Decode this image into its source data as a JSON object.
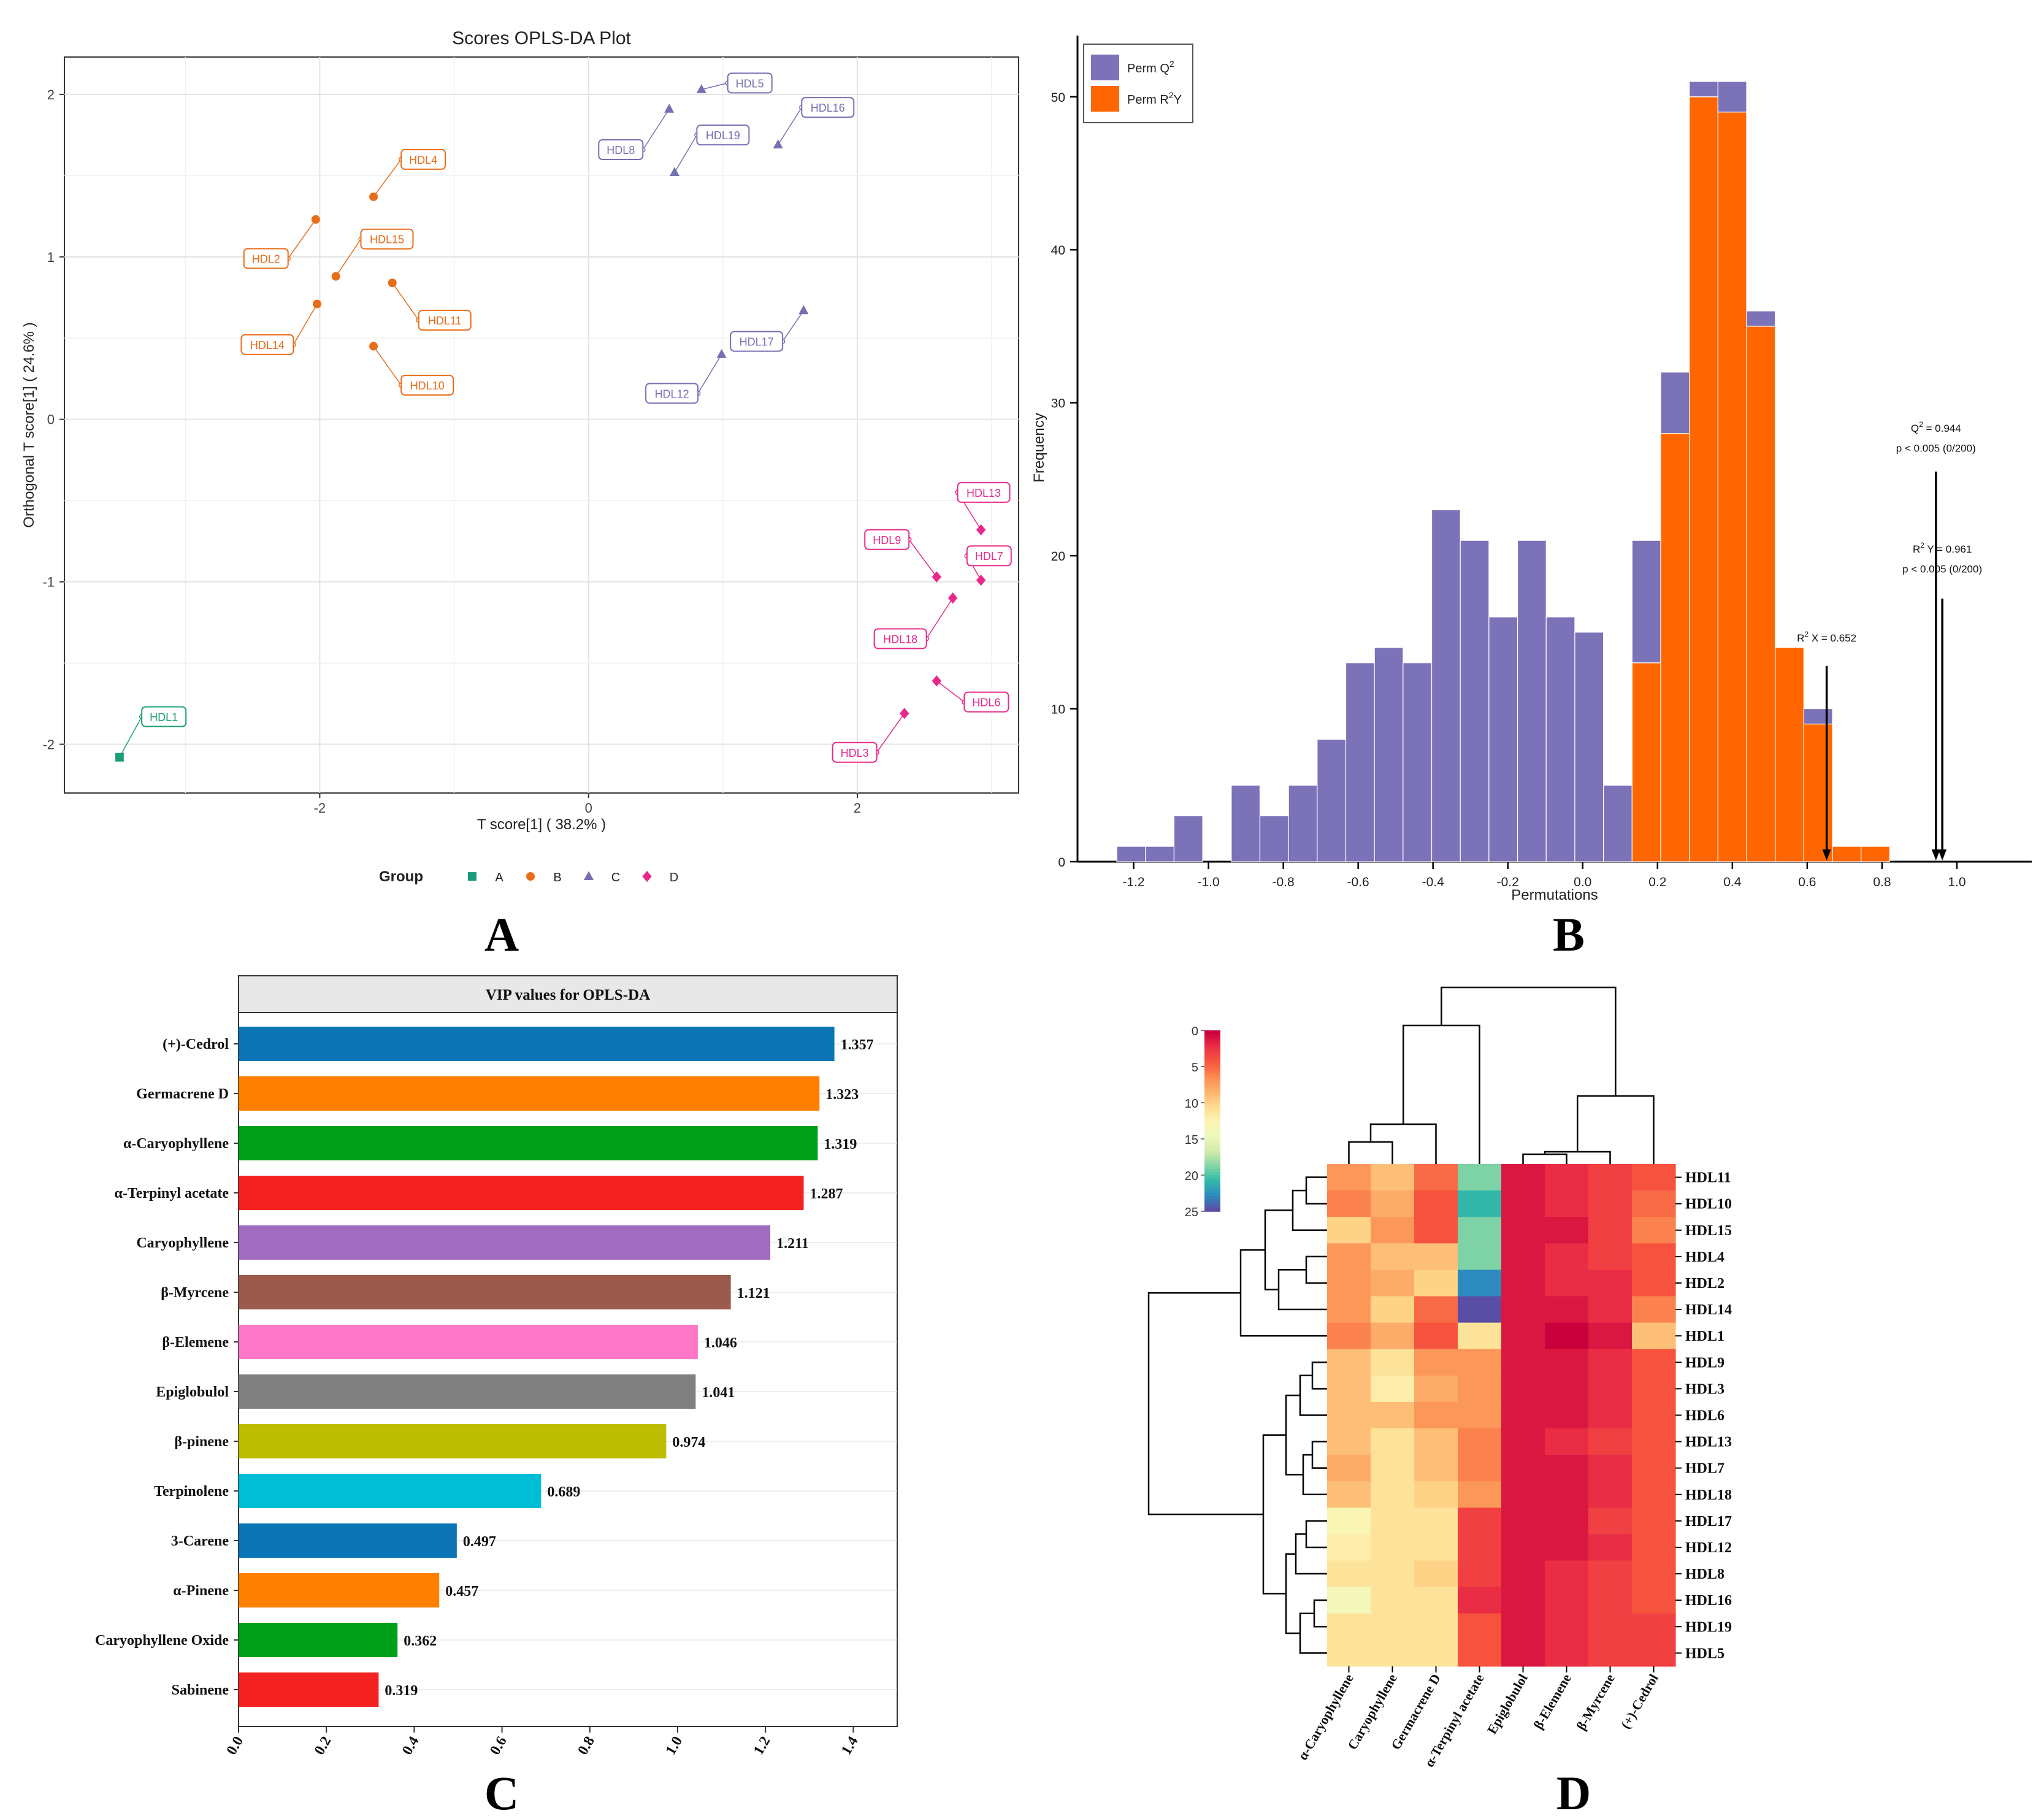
{
  "chart_data": [
    {
      "panel": "A",
      "type": "scatter",
      "title": "Scores OPLS-DA Plot",
      "xlabel": "T score[1] ( 38.2% )",
      "ylabel": "Orthogonal T score[1] ( 24.6% )",
      "xlim": [
        -3.9,
        3.2
      ],
      "ylim": [
        -2.3,
        2.23
      ],
      "xticks": [
        -2,
        0,
        2
      ],
      "yticks": [
        -2,
        -1,
        0,
        1,
        2
      ],
      "legend_title": "Group",
      "groups": [
        {
          "name": "A",
          "color": "#1b9e77",
          "shape": "square"
        },
        {
          "name": "B",
          "color": "#e96d19",
          "shape": "circle"
        },
        {
          "name": "C",
          "color": "#7570b3",
          "shape": "triangle"
        },
        {
          "name": "D",
          "color": "#e7298a",
          "shape": "diamond"
        }
      ],
      "points": [
        {
          "label": "HDL1",
          "group": "A",
          "x": -3.49,
          "y": -2.08,
          "lx": -3.16,
          "ly": -1.83
        },
        {
          "label": "HDL4",
          "group": "B",
          "x": -1.6,
          "y": 1.37,
          "lx": -1.23,
          "ly": 1.6
        },
        {
          "label": "HDL15",
          "group": "B",
          "x": -1.88,
          "y": 0.88,
          "lx": -1.5,
          "ly": 1.11
        },
        {
          "label": "HDL2",
          "group": "B",
          "x": -2.03,
          "y": 1.23,
          "lx": -2.4,
          "ly": 0.99
        },
        {
          "label": "HDL11",
          "group": "B",
          "x": -1.46,
          "y": 0.84,
          "lx": -1.07,
          "ly": 0.61
        },
        {
          "label": "HDL14",
          "group": "B",
          "x": -2.02,
          "y": 0.71,
          "lx": -2.39,
          "ly": 0.46
        },
        {
          "label": "HDL10",
          "group": "B",
          "x": -1.6,
          "y": 0.45,
          "lx": -1.2,
          "ly": 0.21
        },
        {
          "label": "HDL5",
          "group": "C",
          "x": 0.84,
          "y": 2.03,
          "lx": 1.2,
          "ly": 2.07
        },
        {
          "label": "HDL16",
          "group": "C",
          "x": 1.41,
          "y": 1.69,
          "lx": 1.78,
          "ly": 1.92
        },
        {
          "label": "HDL19",
          "group": "C",
          "x": 0.64,
          "y": 1.52,
          "lx": 1.0,
          "ly": 1.75
        },
        {
          "label": "HDL8",
          "group": "C",
          "x": 0.6,
          "y": 1.91,
          "lx": 0.24,
          "ly": 1.66
        },
        {
          "label": "HDL17",
          "group": "C",
          "x": 1.6,
          "y": 0.67,
          "lx": 1.25,
          "ly": 0.48
        },
        {
          "label": "HDL12",
          "group": "C",
          "x": 0.99,
          "y": 0.4,
          "lx": 0.62,
          "ly": 0.16
        },
        {
          "label": "HDL13",
          "group": "D",
          "x": 2.92,
          "y": -0.68,
          "lx": 2.94,
          "ly": -0.45
        },
        {
          "label": "HDL9",
          "group": "D",
          "x": 2.59,
          "y": -0.97,
          "lx": 2.22,
          "ly": -0.74
        },
        {
          "label": "HDL7",
          "group": "D",
          "x": 2.92,
          "y": -0.99,
          "lx": 2.98,
          "ly": -0.84
        },
        {
          "label": "HDL18",
          "group": "D",
          "x": 2.71,
          "y": -1.1,
          "lx": 2.32,
          "ly": -1.35
        },
        {
          "label": "HDL6",
          "group": "D",
          "x": 2.59,
          "y": -1.61,
          "lx": 2.96,
          "ly": -1.74
        },
        {
          "label": "HDL3",
          "group": "D",
          "x": 2.35,
          "y": -1.81,
          "lx": 1.98,
          "ly": -2.05
        }
      ]
    },
    {
      "panel": "B",
      "type": "bar",
      "stacked": true,
      "xlabel": "Permutations",
      "ylabel": "Frequency",
      "xlim": [
        -1.35,
        1.2
      ],
      "ylim": [
        0,
        54
      ],
      "xticks": [
        -1.2,
        -1.0,
        -0.8,
        -0.6,
        -0.4,
        -0.2,
        0.0,
        0.2,
        0.4,
        0.6,
        0.8,
        1.0
      ],
      "xtick_labels": [
        "-1.2",
        "-1.0",
        "-0.8",
        "-0.6",
        "-0.4",
        "-0.2",
        "0.0",
        "0.2",
        "0.4",
        "0.6",
        "0.8",
        "1.0"
      ],
      "yticks": [
        0,
        10,
        20,
        30,
        40,
        50
      ],
      "bin_start": -1.245,
      "bin_width": 0.0765,
      "series": [
        {
          "name": "Perm Q2",
          "legend_main": "Perm Q",
          "legend_sup": "2",
          "color": "#7b72b8",
          "values": [
            1,
            1,
            3,
            0,
            5,
            3,
            5,
            8,
            13,
            14,
            13,
            23,
            21,
            16,
            21,
            16,
            15,
            5,
            8,
            4,
            1,
            2,
            1,
            0,
            1,
            0,
            0
          ]
        },
        {
          "name": "Perm R2Y",
          "legend_main": "Perm R",
          "legend_sup": "2",
          "legend_tail": "Y",
          "color": "#ff6600",
          "values": [
            0,
            0,
            0,
            0,
            0,
            0,
            0,
            0,
            0,
            0,
            0,
            0,
            0,
            0,
            0,
            0,
            0,
            0,
            13,
            28,
            50,
            49,
            35,
            14,
            9,
            1,
            1
          ]
        }
      ],
      "annotations": [
        {
          "id": "q2",
          "label_main": "Q",
          "label_sup": "2",
          "label_tail": " = 0.944",
          "sub": "p < 0.005 (0/200)",
          "x": 0.944,
          "arrow_top": 25.5,
          "label_y": 28.1,
          "sub_y": 26.8
        },
        {
          "id": "r2y",
          "label_main": "R",
          "label_sup": "2",
          "label_tail": " Y = 0.961",
          "sub": "p < 0.005 (0/200)",
          "x": 0.961,
          "arrow_top": 17.2,
          "label_y": 20.2,
          "sub_y": 18.9
        },
        {
          "id": "r2x",
          "label_main": "R",
          "label_sup": "2",
          "label_tail": " X = 0.652",
          "sub": "",
          "x": 0.652,
          "arrow_top": 12.8,
          "label_y": 14.4,
          "sub_y": 0
        }
      ]
    },
    {
      "panel": "C",
      "type": "bar",
      "orientation": "horizontal",
      "title": "VIP values for OPLS-DA",
      "xlim": [
        0,
        1.5
      ],
      "xticks": [
        "0.0",
        "0.2",
        "0.4",
        "0.6",
        "0.8",
        "1.0",
        "1.2",
        "1.4"
      ],
      "categories": [
        "(+)-Cedrol",
        "Germacrene D",
        "α-Caryophyllene",
        "α-Terpinyl acetate",
        "Caryophyllene",
        "β-Myrcene",
        "β-Elemene",
        "Epiglobulol",
        "β-pinene",
        "Terpinolene",
        "3-Carene",
        "α-Pinene",
        "Caryophyllene Oxide",
        "Sabinene"
      ],
      "values": [
        1.357,
        1.323,
        1.319,
        1.287,
        1.211,
        1.121,
        1.046,
        1.041,
        0.974,
        0.689,
        0.497,
        0.457,
        0.362,
        0.319
      ],
      "value_labels": [
        "1.357",
        "1.323",
        "1.319",
        "1.287",
        "1.211",
        "1.121",
        "1.046",
        "1.041",
        "0.974",
        "0.689",
        "0.497",
        "0.457",
        "0.362",
        "0.319"
      ],
      "colors": [
        "#0b74b5",
        "#ff8000",
        "#00a01a",
        "#f52222",
        "#9f6cc1",
        "#9b5a4b",
        "#ff78c8",
        "#808080",
        "#bdbe00",
        "#00bdd6",
        "#0b74b5",
        "#ff8000",
        "#00a01a",
        "#f52222"
      ]
    },
    {
      "panel": "D",
      "type": "heatmap",
      "columns": [
        "α-Caryophyllene",
        "Caryophyllene",
        "Germacrene D",
        "α-Terpinyl acetate",
        "Epiglobulol",
        "β-Elemene",
        "β-Myrcene",
        "(+)-Cedrol"
      ],
      "rows": [
        "HDL11",
        "HDL10",
        "HDL15",
        "HDL4",
        "HDL2",
        "HDL14",
        "HDL1",
        "HDL9",
        "HDL3",
        "HDL6",
        "HDL13",
        "HDL7",
        "HDL18",
        "HDL17",
        "HDL12",
        "HDL8",
        "HDL16",
        "HDL19",
        "HDL5"
      ],
      "values": [
        [
          7,
          9,
          5,
          19,
          1,
          2,
          3,
          4
        ],
        [
          6,
          8,
          4,
          21,
          1,
          2,
          3,
          5
        ],
        [
          10,
          7,
          4,
          19,
          1,
          1,
          3,
          6
        ],
        [
          7,
          9,
          9,
          19,
          1,
          2,
          3,
          4
        ],
        [
          7,
          8,
          10,
          23,
          1,
          2,
          2,
          4
        ],
        [
          7,
          10,
          5,
          25,
          1,
          1,
          2,
          6
        ],
        [
          6,
          8,
          4,
          11,
          1,
          0,
          1,
          9
        ],
        [
          9,
          11,
          7,
          7,
          1,
          1,
          2,
          4
        ],
        [
          9,
          12,
          8,
          7,
          1,
          1,
          2,
          4
        ],
        [
          9,
          9,
          7,
          7,
          1,
          1,
          2,
          4
        ],
        [
          9,
          11,
          9,
          6,
          1,
          2,
          3,
          4
        ],
        [
          8,
          11,
          9,
          6,
          1,
          1,
          2,
          4
        ],
        [
          9,
          11,
          10,
          7,
          1,
          1,
          2,
          4
        ],
        [
          13,
          11,
          11,
          3,
          1,
          1,
          3,
          4
        ],
        [
          12,
          11,
          11,
          3,
          1,
          1,
          2,
          4
        ],
        [
          11,
          11,
          10,
          3,
          1,
          2,
          3,
          4
        ],
        [
          14,
          11,
          11,
          2,
          1,
          2,
          3,
          4
        ],
        [
          11,
          11,
          11,
          4,
          1,
          2,
          3,
          3
        ],
        [
          11,
          11,
          11,
          4,
          1,
          2,
          3,
          3
        ]
      ],
      "color_scale": {
        "min": 0,
        "max": 25,
        "ticks": [
          0,
          5,
          10,
          15,
          20,
          25
        ]
      },
      "palette": [
        "#c9003c",
        "#ea2f45",
        "#f7563f",
        "#fb8850",
        "#fdb26c",
        "#fedb8f",
        "#fcf4b3",
        "#f0f8bc",
        "#d5ecab",
        "#88d6a6",
        "#35bba9",
        "#2b8dbf",
        "#5a4ea4"
      ]
    }
  ],
  "panel_letters": {
    "A": "A",
    "B": "B",
    "C": "C",
    "D": "D"
  }
}
